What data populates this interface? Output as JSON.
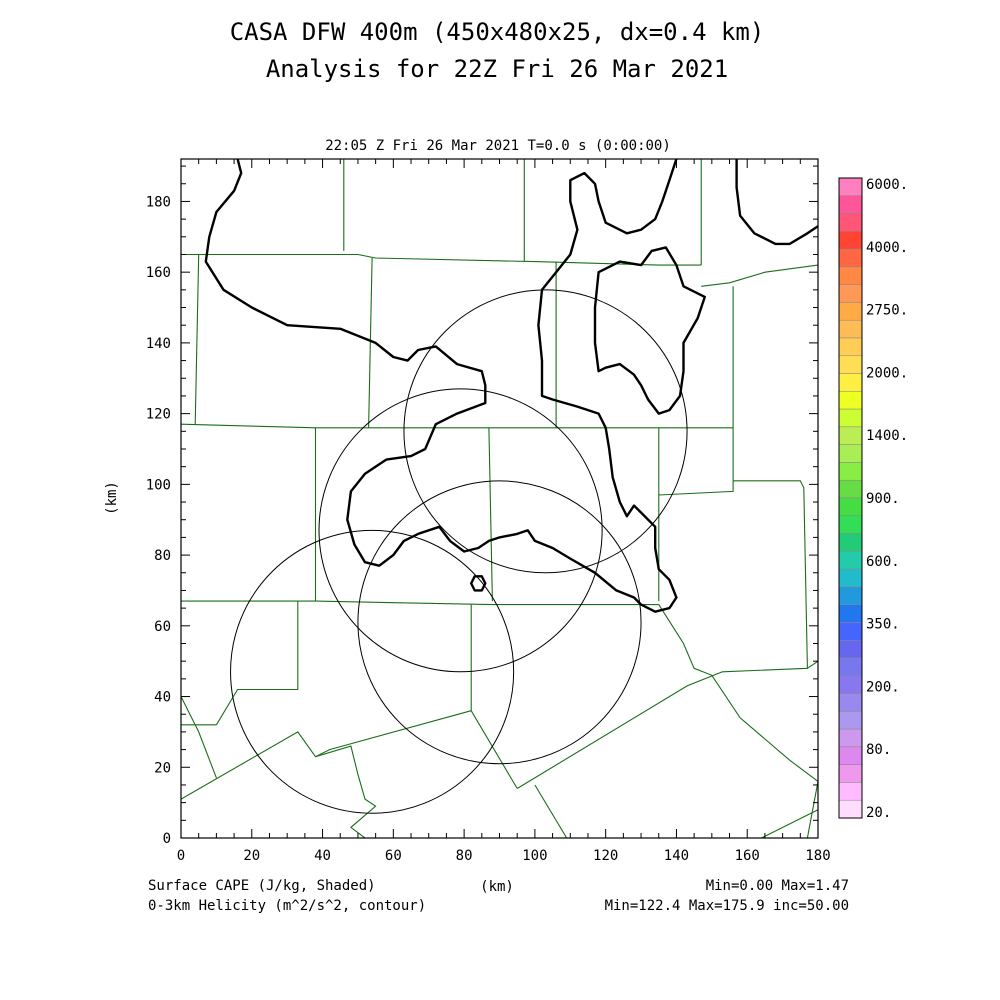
{
  "title_line1": "CASA DFW 400m (450x480x25, dx=0.4 km)",
  "title_line2": "Analysis for 22Z Fri 26 Mar 2021",
  "valid_time": "22:05 Z Fri 26 Mar 2021   T=0.0 s (0:00:00)",
  "xlabel": "(km)",
  "ylabel": "(km)",
  "footer": {
    "field1": "Surface CAPE (J/kg, Shaded)",
    "field2": "0-3km Helicity (m^2/s^2, contour)",
    "stats1": "Min=0.00 Max=1.47",
    "stats2": "Min=122.4 Max=175.9 inc=50.00"
  },
  "colorbar": {
    "labels": [
      "6000.",
      "4000.",
      "2750.",
      "2000.",
      "1400.",
      "900.",
      "600.",
      "350.",
      "200.",
      "80.",
      "20."
    ],
    "colors": [
      "#ff7fbf",
      "#ff5599",
      "#ff5577",
      "#ff4433",
      "#ff6644",
      "#ff8844",
      "#ff9955",
      "#ffaa44",
      "#ffbb55",
      "#ffcc55",
      "#ffdd55",
      "#ffee44",
      "#eeff22",
      "#ccff33",
      "#bbee55",
      "#aaee55",
      "#88ee44",
      "#66dd44",
      "#44dd44",
      "#33dd55",
      "#22cc77",
      "#22ccaa",
      "#22bbcc",
      "#2299dd",
      "#2277ee",
      "#4466ff",
      "#6666ee",
      "#7777ee",
      "#8877ee",
      "#9988ee",
      "#aa99ee",
      "#cc99ee",
      "#dd88ee",
      "#ee99ee",
      "#ffbbff",
      "#ffddff"
    ]
  },
  "chart_data": {
    "type": "contour-map",
    "x_ticks": [
      0,
      20,
      40,
      60,
      80,
      100,
      120,
      140,
      160,
      180
    ],
    "y_ticks": [
      0,
      20,
      40,
      60,
      80,
      100,
      120,
      140,
      160,
      180
    ],
    "xlim": [
      0,
      180
    ],
    "ylim": [
      0,
      192
    ],
    "radar_rings": [
      {
        "cx": 103,
        "cy": 115,
        "r": 40
      },
      {
        "cx": 79,
        "cy": 87,
        "r": 40
      },
      {
        "cx": 90,
        "cy": 61,
        "r": 40
      },
      {
        "cx": 54,
        "cy": 47,
        "r": 40
      }
    ],
    "county_lines": [
      [
        [
          0,
          165
        ],
        [
          50,
          165
        ],
        [
          55,
          164
        ],
        [
          100,
          163
        ],
        [
          135,
          162
        ],
        [
          147,
          162
        ]
      ],
      [
        [
          147,
          162
        ],
        [
          147,
          192
        ]
      ],
      [
        [
          147,
          156
        ],
        [
          155,
          157
        ],
        [
          165,
          160
        ],
        [
          180,
          162
        ]
      ],
      [
        [
          46,
          192
        ],
        [
          46,
          166
        ]
      ],
      [
        [
          97,
          192
        ],
        [
          97,
          163
        ]
      ],
      [
        [
          0,
          117
        ],
        [
          38,
          116
        ],
        [
          70,
          116
        ],
        [
          105,
          116
        ],
        [
          125,
          116
        ],
        [
          156,
          116
        ]
      ],
      [
        [
          5,
          165
        ],
        [
          4,
          117
        ]
      ],
      [
        [
          54,
          164
        ],
        [
          53,
          116
        ]
      ],
      [
        [
          106,
          163
        ],
        [
          106,
          116
        ]
      ],
      [
        [
          156,
          156
        ],
        [
          156,
          116
        ],
        [
          156,
          98
        ],
        [
          135,
          97
        ]
      ],
      [
        [
          156,
          101
        ],
        [
          175,
          101
        ],
        [
          176,
          99
        ],
        [
          177,
          48
        ],
        [
          153,
          47
        ]
      ],
      [
        [
          38,
          116
        ],
        [
          38,
          67
        ]
      ],
      [
        [
          87,
          116
        ],
        [
          88,
          67
        ]
      ],
      [
        [
          135,
          116
        ],
        [
          135,
          67
        ]
      ],
      [
        [
          0,
          67
        ],
        [
          38,
          67
        ],
        [
          88,
          66
        ],
        [
          135,
          66
        ]
      ],
      [
        [
          33,
          67
        ],
        [
          33,
          42
        ],
        [
          16,
          42
        ],
        [
          10,
          32
        ]
      ],
      [
        [
          82,
          66
        ],
        [
          82,
          36
        ]
      ],
      [
        [
          0,
          32
        ],
        [
          10,
          32
        ]
      ],
      [
        [
          0,
          40
        ],
        [
          5,
          30
        ],
        [
          10,
          17
        ]
      ],
      [
        [
          0,
          11
        ],
        [
          33,
          30
        ],
        [
          38,
          23
        ],
        [
          42,
          25
        ],
        [
          82,
          36
        ],
        [
          95,
          14
        ]
      ],
      [
        [
          95,
          14
        ],
        [
          143,
          43
        ],
        [
          153,
          47
        ]
      ],
      [
        [
          100,
          15
        ],
        [
          109,
          0
        ]
      ],
      [
        [
          38,
          23
        ],
        [
          48,
          26
        ],
        [
          50,
          18
        ],
        [
          52,
          11
        ],
        [
          55,
          9
        ],
        [
          48,
          3
        ],
        [
          52,
          0
        ]
      ],
      [
        [
          135,
          66
        ],
        [
          142,
          55
        ],
        [
          145,
          48
        ],
        [
          150,
          46
        ],
        [
          158,
          34
        ],
        [
          165,
          28
        ],
        [
          172,
          22
        ],
        [
          180,
          16
        ],
        [
          177,
          0
        ]
      ],
      [
        [
          180,
          8
        ],
        [
          164,
          0
        ]
      ],
      [
        [
          177,
          48
        ],
        [
          180,
          50
        ]
      ]
    ],
    "helicity_contours": [
      [
        [
          16,
          192
        ],
        [
          17,
          188
        ],
        [
          15,
          183
        ],
        [
          10,
          177
        ],
        [
          8,
          170
        ],
        [
          7,
          163
        ],
        [
          12,
          155
        ],
        [
          20,
          150
        ],
        [
          30,
          145
        ],
        [
          45,
          144
        ],
        [
          55,
          140
        ],
        [
          60,
          136
        ],
        [
          64,
          135
        ],
        [
          67,
          138
        ],
        [
          72,
          139
        ],
        [
          78,
          134
        ],
        [
          85,
          132
        ],
        [
          86,
          128
        ],
        [
          86,
          123
        ],
        [
          78,
          120
        ],
        [
          72,
          117
        ],
        [
          69,
          110
        ],
        [
          65,
          108
        ],
        [
          58,
          107
        ],
        [
          52,
          103
        ],
        [
          48,
          98
        ],
        [
          47,
          90
        ],
        [
          49,
          83
        ],
        [
          52,
          78
        ],
        [
          56,
          77
        ],
        [
          60,
          80
        ],
        [
          63,
          84
        ],
        [
          67,
          86
        ],
        [
          73,
          88
        ],
        [
          76,
          84
        ],
        [
          80,
          81
        ],
        [
          84,
          82
        ],
        [
          87,
          84
        ],
        [
          90,
          85
        ],
        [
          95,
          86
        ],
        [
          98,
          87
        ],
        [
          100,
          84
        ],
        [
          105,
          82
        ],
        [
          110,
          79
        ],
        [
          117,
          75
        ],
        [
          123,
          70
        ],
        [
          128,
          68
        ],
        [
          130,
          66
        ],
        [
          134,
          64
        ],
        [
          138,
          65
        ],
        [
          140,
          68
        ],
        [
          138,
          73
        ],
        [
          135,
          76
        ],
        [
          134,
          82
        ],
        [
          134,
          88
        ],
        [
          130,
          92
        ],
        [
          128,
          94
        ],
        [
          126,
          91
        ],
        [
          124,
          95
        ],
        [
          122,
          102
        ],
        [
          121,
          110
        ],
        [
          120,
          116
        ],
        [
          118,
          120
        ],
        [
          112,
          122
        ],
        [
          105,
          124
        ],
        [
          102,
          125
        ],
        [
          102,
          135
        ],
        [
          101,
          145
        ],
        [
          102,
          155
        ],
        [
          106,
          160
        ],
        [
          110,
          165
        ],
        [
          112,
          172
        ],
        [
          110,
          180
        ],
        [
          110,
          186
        ],
        [
          114,
          188
        ],
        [
          117,
          185
        ],
        [
          118,
          180
        ],
        [
          120,
          174
        ],
        [
          126,
          171
        ],
        [
          130,
          172
        ],
        [
          134,
          175
        ],
        [
          136,
          180
        ],
        [
          138,
          186
        ],
        [
          140,
          192
        ]
      ],
      [
        [
          118,
          132
        ],
        [
          117,
          140
        ],
        [
          117,
          150
        ],
        [
          118,
          160
        ],
        [
          124,
          163
        ],
        [
          130,
          162
        ],
        [
          133,
          166
        ],
        [
          137,
          167
        ],
        [
          140,
          162
        ],
        [
          142,
          156
        ],
        [
          148,
          153
        ],
        [
          146,
          147
        ],
        [
          142,
          140
        ],
        [
          142,
          132
        ],
        [
          141,
          125
        ],
        [
          138,
          121
        ],
        [
          135,
          120
        ],
        [
          132,
          124
        ],
        [
          130,
          128
        ],
        [
          128,
          131
        ],
        [
          124,
          134
        ],
        [
          120,
          133
        ],
        [
          118,
          132
        ]
      ],
      [
        [
          157,
          192
        ],
        [
          157,
          184
        ],
        [
          158,
          176
        ],
        [
          162,
          171
        ],
        [
          168,
          168
        ],
        [
          172,
          168
        ],
        [
          177,
          171
        ],
        [
          180,
          173
        ]
      ],
      [
        [
          82,
          72
        ],
        [
          83,
          70
        ],
        [
          85,
          70
        ],
        [
          86,
          72
        ],
        [
          85,
          74
        ],
        [
          83,
          74
        ],
        [
          82,
          72
        ]
      ]
    ]
  }
}
